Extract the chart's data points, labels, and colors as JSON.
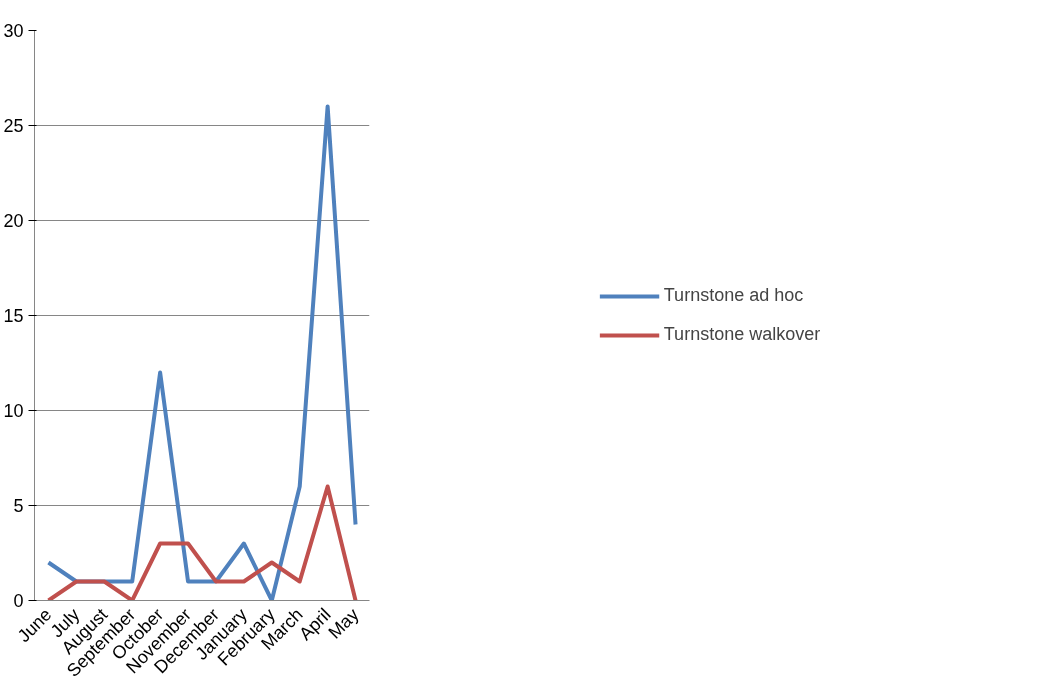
{
  "chart_data": {
    "type": "line",
    "categories": [
      "June",
      "July",
      "August",
      "September",
      "October",
      "November",
      "December",
      "January",
      "February",
      "March",
      "April",
      "May"
    ],
    "series": [
      {
        "name": "Turnstone ad hoc",
        "color": "#4f81bd",
        "values": [
          2,
          1,
          1,
          1,
          12,
          1,
          1,
          3,
          0,
          6,
          26,
          4
        ]
      },
      {
        "name": "Turnstone walkover",
        "color": "#c0504d",
        "values": [
          0,
          1,
          1,
          0,
          3,
          3,
          1,
          1,
          2,
          1,
          6,
          0
        ]
      }
    ],
    "ylim": [
      0,
      30
    ],
    "yticks": [
      0,
      5,
      10,
      15,
      20,
      25,
      30
    ],
    "grid": "y",
    "legend": "right",
    "marker": "none",
    "line_style": "solid"
  }
}
